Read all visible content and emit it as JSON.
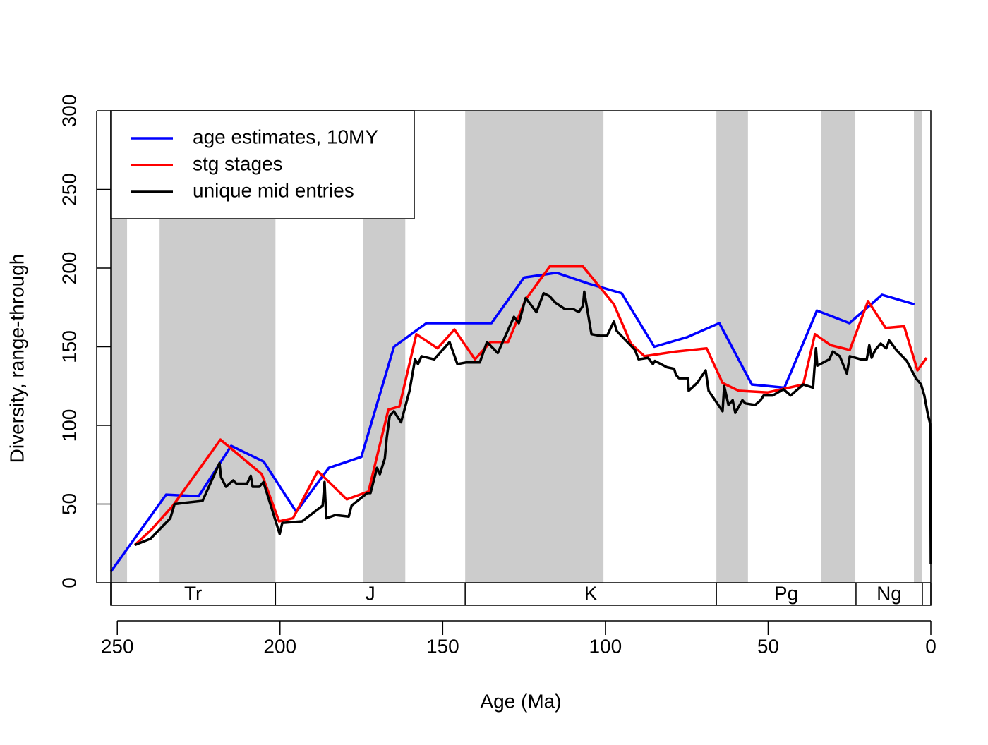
{
  "chart_data": {
    "type": "line",
    "x_label": "Age (Ma)",
    "y_label": "Diversity, range-through",
    "xlim": [
      252,
      0
    ],
    "ylim": [
      0,
      300
    ],
    "xticks": [
      250,
      200,
      150,
      100,
      50,
      0
    ],
    "yticks": [
      0,
      50,
      100,
      150,
      200,
      250,
      300
    ],
    "legend": "topleft",
    "bands_color": "#cccccc",
    "bands": [
      [
        252,
        247
      ],
      [
        237,
        201.4
      ],
      [
        174.5,
        161.5
      ],
      [
        143.1,
        100.6
      ],
      [
        65.9,
        56.2
      ],
      [
        33.8,
        23.2
      ],
      [
        5.2,
        2.8
      ]
    ],
    "period_boundaries": [
      252,
      201.4,
      143.1,
      65.9,
      23,
      2.6,
      0
    ],
    "period_labels": [
      "Tr",
      "J",
      "K",
      "Pg",
      "Ng",
      null
    ],
    "series": [
      {
        "name": "age estimates, 10MY",
        "color": "#0000ff",
        "x": [
          252,
          235,
          225,
          215,
          205,
          195,
          185,
          175,
          165,
          155,
          135,
          125,
          115,
          105,
          95,
          85,
          75,
          65,
          55,
          45,
          35,
          25,
          15,
          5
        ],
        "values": [
          7,
          56,
          55,
          87,
          77,
          45,
          73,
          80,
          150,
          165,
          165,
          194,
          197,
          190,
          184,
          150,
          156,
          165,
          126,
          124,
          173,
          165,
          183,
          177
        ]
      },
      {
        "name": "stg stages",
        "color": "#ff0000",
        "x": [
          244.6,
          239.4,
          232.9,
          218.3,
          205.6,
          200.3,
          196.0,
          188.4,
          179.5,
          172.8,
          166.7,
          163.3,
          158.1,
          151.6,
          146.4,
          140.1,
          135.3,
          129.9,
          124.5,
          117.1,
          106.9,
          97.4,
          92.2,
          88.0,
          78.3,
          68.9,
          64.0,
          59.0,
          50.1,
          39.2,
          35.6,
          30.8,
          24.9,
          19.3,
          13.9,
          8.2,
          4.1,
          1.3
        ],
        "values": [
          24,
          34,
          49,
          91,
          69,
          39,
          41,
          71,
          53,
          58,
          110,
          112,
          158,
          149,
          161,
          142,
          153,
          153,
          180,
          201,
          201,
          177,
          152,
          144,
          147,
          149,
          127,
          122,
          121,
          126,
          158,
          151,
          148,
          179,
          162,
          163,
          135,
          143
        ]
      },
      {
        "name": "unique mid entries",
        "color": "#000000",
        "x": [
          244.6,
          239.8,
          233.7,
          232.4,
          228.5,
          223.8,
          218.6,
          218.1,
          216.6,
          214.4,
          213.4,
          210.1,
          209.0,
          208.4,
          206.4,
          205.1,
          200.1,
          199.3,
          193.2,
          186.9,
          186.3,
          185.8,
          183.0,
          178.9,
          178.0,
          173.2,
          172.2,
          170.2,
          169.3,
          167.8,
          167.2,
          166.3,
          165.0,
          162.8,
          160.2,
          158.5,
          157.6,
          156.5,
          152.6,
          147.9,
          145.5,
          142.9,
          138.6,
          136.4,
          133.1,
          128.1,
          126.6,
          124.5,
          121.2,
          119.0,
          117.1,
          115.4,
          112.5,
          109.9,
          108.2,
          106.9,
          106.5,
          104.3,
          101.7,
          99.5,
          97.4,
          96.5,
          90.9,
          89.8,
          86.9,
          85.4,
          84.8,
          81.1,
          78.9,
          78.3,
          77.4,
          74.6,
          74.4,
          71.8,
          69.2,
          68.3,
          64.0,
          63.5,
          62.2,
          60.9,
          60.1,
          57.9,
          57.0,
          54.0,
          52.3,
          51.4,
          48.6,
          45.3,
          43.1,
          39.2,
          36.2,
          35.3,
          34.9,
          31.2,
          30.1,
          28.0,
          25.8,
          24.9,
          21.5,
          19.7,
          18.9,
          18.2,
          17.1,
          15.4,
          13.7,
          12.8,
          10.6,
          7.4,
          4.6,
          3.0,
          2.0,
          0.9,
          0.2,
          0.0
        ],
        "values": [
          24,
          28,
          41,
          50,
          51,
          52,
          76,
          67,
          61,
          65,
          63,
          63,
          68,
          61,
          61,
          64,
          31,
          38,
          39,
          49,
          64,
          41,
          43,
          42,
          49,
          57,
          57,
          73,
          69,
          79,
          92,
          106,
          109,
          102,
          122,
          142,
          139,
          144,
          142,
          153,
          139,
          140,
          140,
          153,
          146,
          169,
          165,
          181,
          172,
          184,
          182,
          178,
          174,
          174,
          172,
          176,
          185,
          158,
          157,
          157,
          166,
          160,
          148,
          142,
          143,
          139,
          141,
          137,
          136,
          132,
          130,
          130,
          122,
          127,
          135,
          122,
          109,
          125,
          113,
          116,
          108,
          116,
          114,
          113,
          116,
          119,
          119,
          123,
          119,
          126,
          124,
          149,
          138,
          142,
          147,
          144,
          133,
          144,
          142,
          142,
          151,
          143,
          148,
          152,
          149,
          154,
          148,
          141,
          130,
          126,
          119,
          107,
          101,
          12
        ]
      }
    ]
  }
}
